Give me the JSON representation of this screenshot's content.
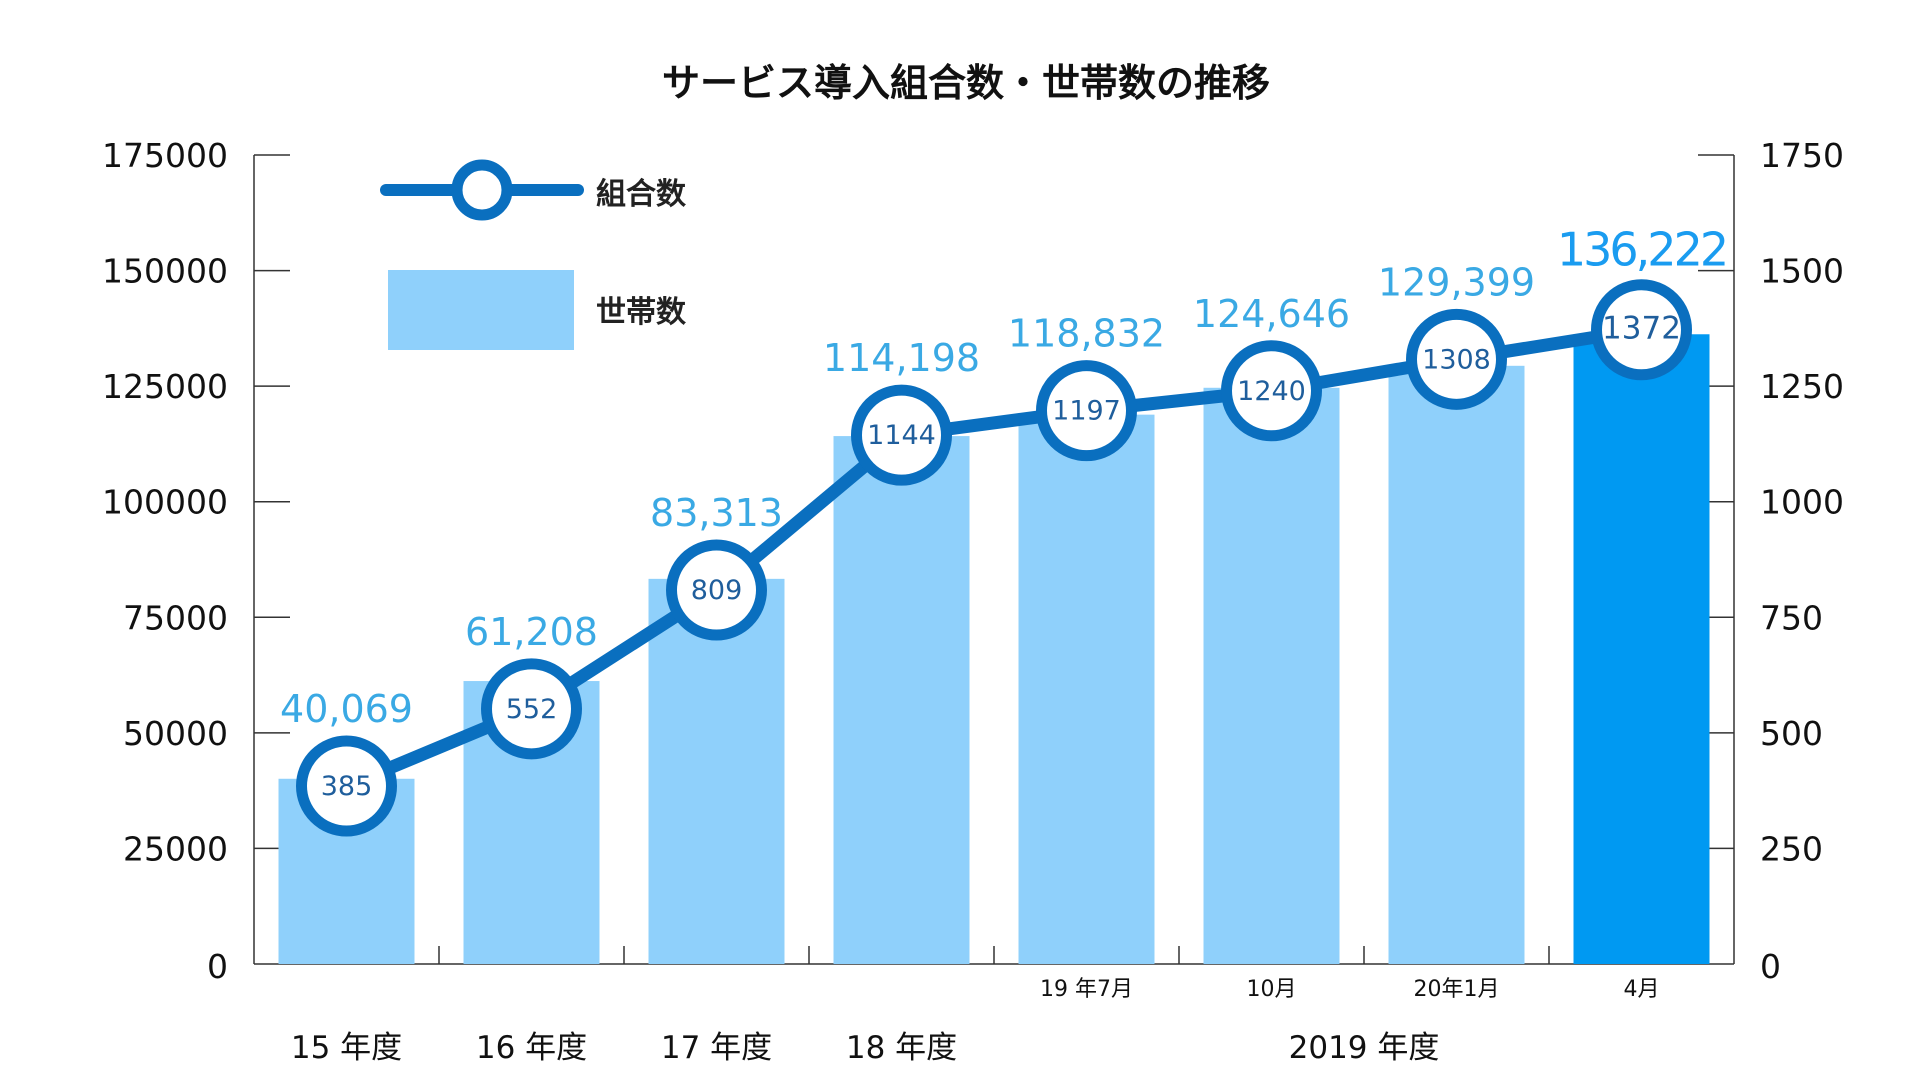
{
  "chart_data": {
    "type": "bar",
    "title": "サービス導入組合数・世帯数の推移",
    "categories": [
      "15 年度",
      "16 年度",
      "17 年度",
      "18 年度",
      "19 年7月",
      "10月",
      "20年1月",
      "4月"
    ],
    "group_labels": [
      "15 年度",
      "16 年度",
      "17 年度",
      "18 年度",
      "2019 年度"
    ],
    "sub_labels": [
      "",
      "",
      "",
      "",
      "19 年7月",
      "10月",
      "20年1月",
      "4月"
    ],
    "left_axis": {
      "ylim": [
        0,
        175000
      ],
      "ticks": [
        "0",
        "25000",
        "50000",
        "75000",
        "100000",
        "125000",
        "150000",
        "175000"
      ]
    },
    "right_axis": {
      "ylim": [
        0,
        1750
      ],
      "ticks": [
        "0",
        "250",
        "500",
        "750",
        "1000",
        "1250",
        "1500",
        "1750"
      ]
    },
    "legend_position": "top-left",
    "series": [
      {
        "name": "世帯数",
        "kind": "bar",
        "axis": "left",
        "values": [
          40069,
          61208,
          83313,
          114198,
          118832,
          124646,
          129399,
          136222
        ],
        "labels": [
          "40,069",
          "61,208",
          "83,313",
          "114,198",
          "118,832",
          "124,646",
          "129,399",
          "136,222"
        ],
        "color": "#8fd0fb",
        "highlight_color": "#0099f2"
      },
      {
        "name": "組合数",
        "kind": "line",
        "axis": "right",
        "values": [
          385,
          552,
          809,
          1144,
          1197,
          1240,
          1308,
          1372
        ],
        "labels": [
          "385",
          "552",
          "809",
          "1144",
          "1197",
          "1240",
          "1308",
          "1372"
        ],
        "color": "#0a6fbf"
      }
    ]
  }
}
